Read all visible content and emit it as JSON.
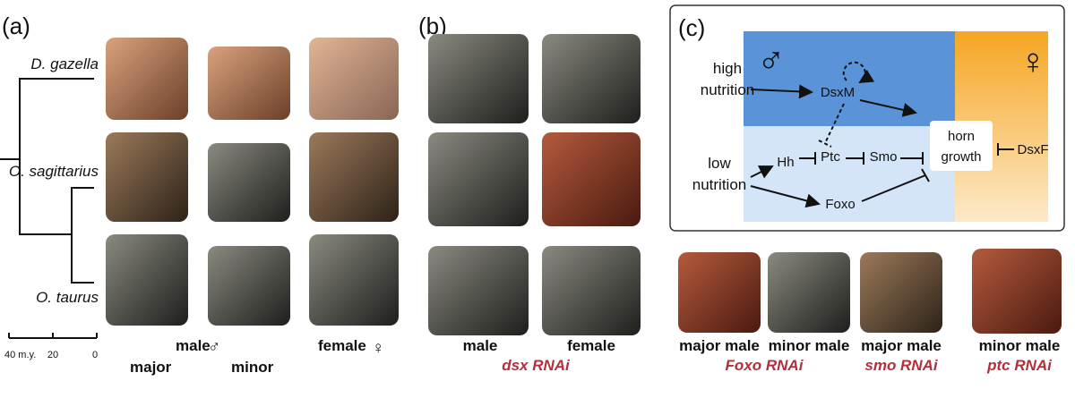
{
  "panel_a": {
    "label": "(a)",
    "species": [
      "D. gazella",
      "O. sagittarius",
      "O. taurus"
    ],
    "scale_labels": [
      "40 m.y.",
      "20",
      "0"
    ],
    "male": "male",
    "male_symbol": "♂",
    "major": "major",
    "minor": "minor",
    "female": "female",
    "female_symbol": "♀"
  },
  "panel_b": {
    "label": "(b)",
    "columns": [
      "male",
      "female"
    ],
    "treatment": "dsx RNAi"
  },
  "panel_c": {
    "label": "(c)",
    "male_symbol": "♂",
    "female_symbol": "♀",
    "nodes": {
      "high_nutrition": [
        "high",
        "nutrition"
      ],
      "low_nutrition": [
        "low",
        "nutrition"
      ],
      "dsxm": "DsxM",
      "hh": "Hh",
      "ptc": "Ptc",
      "smo": "Smo",
      "foxo": "Foxo",
      "horn_growth": [
        "horn",
        "growth"
      ],
      "dsxf": "DsxF"
    },
    "captions": [
      "major male",
      "minor male",
      "major male",
      "minor male"
    ],
    "treatments": [
      "Foxo RNAi",
      "smo RNAi",
      "ptc RNAi"
    ]
  }
}
